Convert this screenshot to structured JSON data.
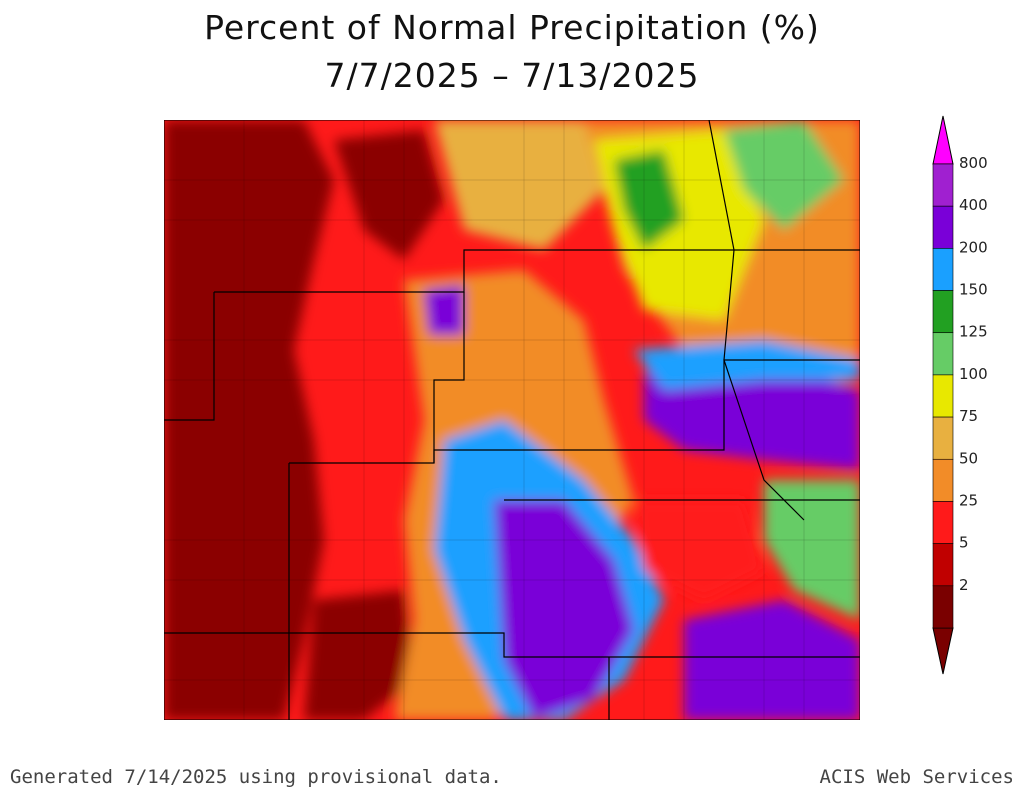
{
  "title": "Percent of Normal Precipitation (%)",
  "subtitle": "7/7/2025 – 7/13/2025",
  "footer_left": "Generated 7/14/2025 using provisional data.",
  "footer_right": "ACIS Web Services",
  "legend": {
    "levels": [
      {
        "label": "2",
        "color": "#7a0000"
      },
      {
        "label": "5",
        "color": "#c00000"
      },
      {
        "label": "25",
        "color": "#ff1a1a"
      },
      {
        "label": "50",
        "color": "#f28c28"
      },
      {
        "label": "75",
        "color": "#e8b040"
      },
      {
        "label": "100",
        "color": "#e8e800"
      },
      {
        "label": "125",
        "color": "#66cc66"
      },
      {
        "label": "150",
        "color": "#22a022"
      },
      {
        "label": "200",
        "color": "#1aa0ff"
      },
      {
        "label": "400",
        "color": "#7a00d8"
      },
      {
        "label": "800",
        "color": "#a020d0"
      }
    ],
    "top_color": "#ff00ff",
    "bottom_color": "#7a0000"
  }
}
